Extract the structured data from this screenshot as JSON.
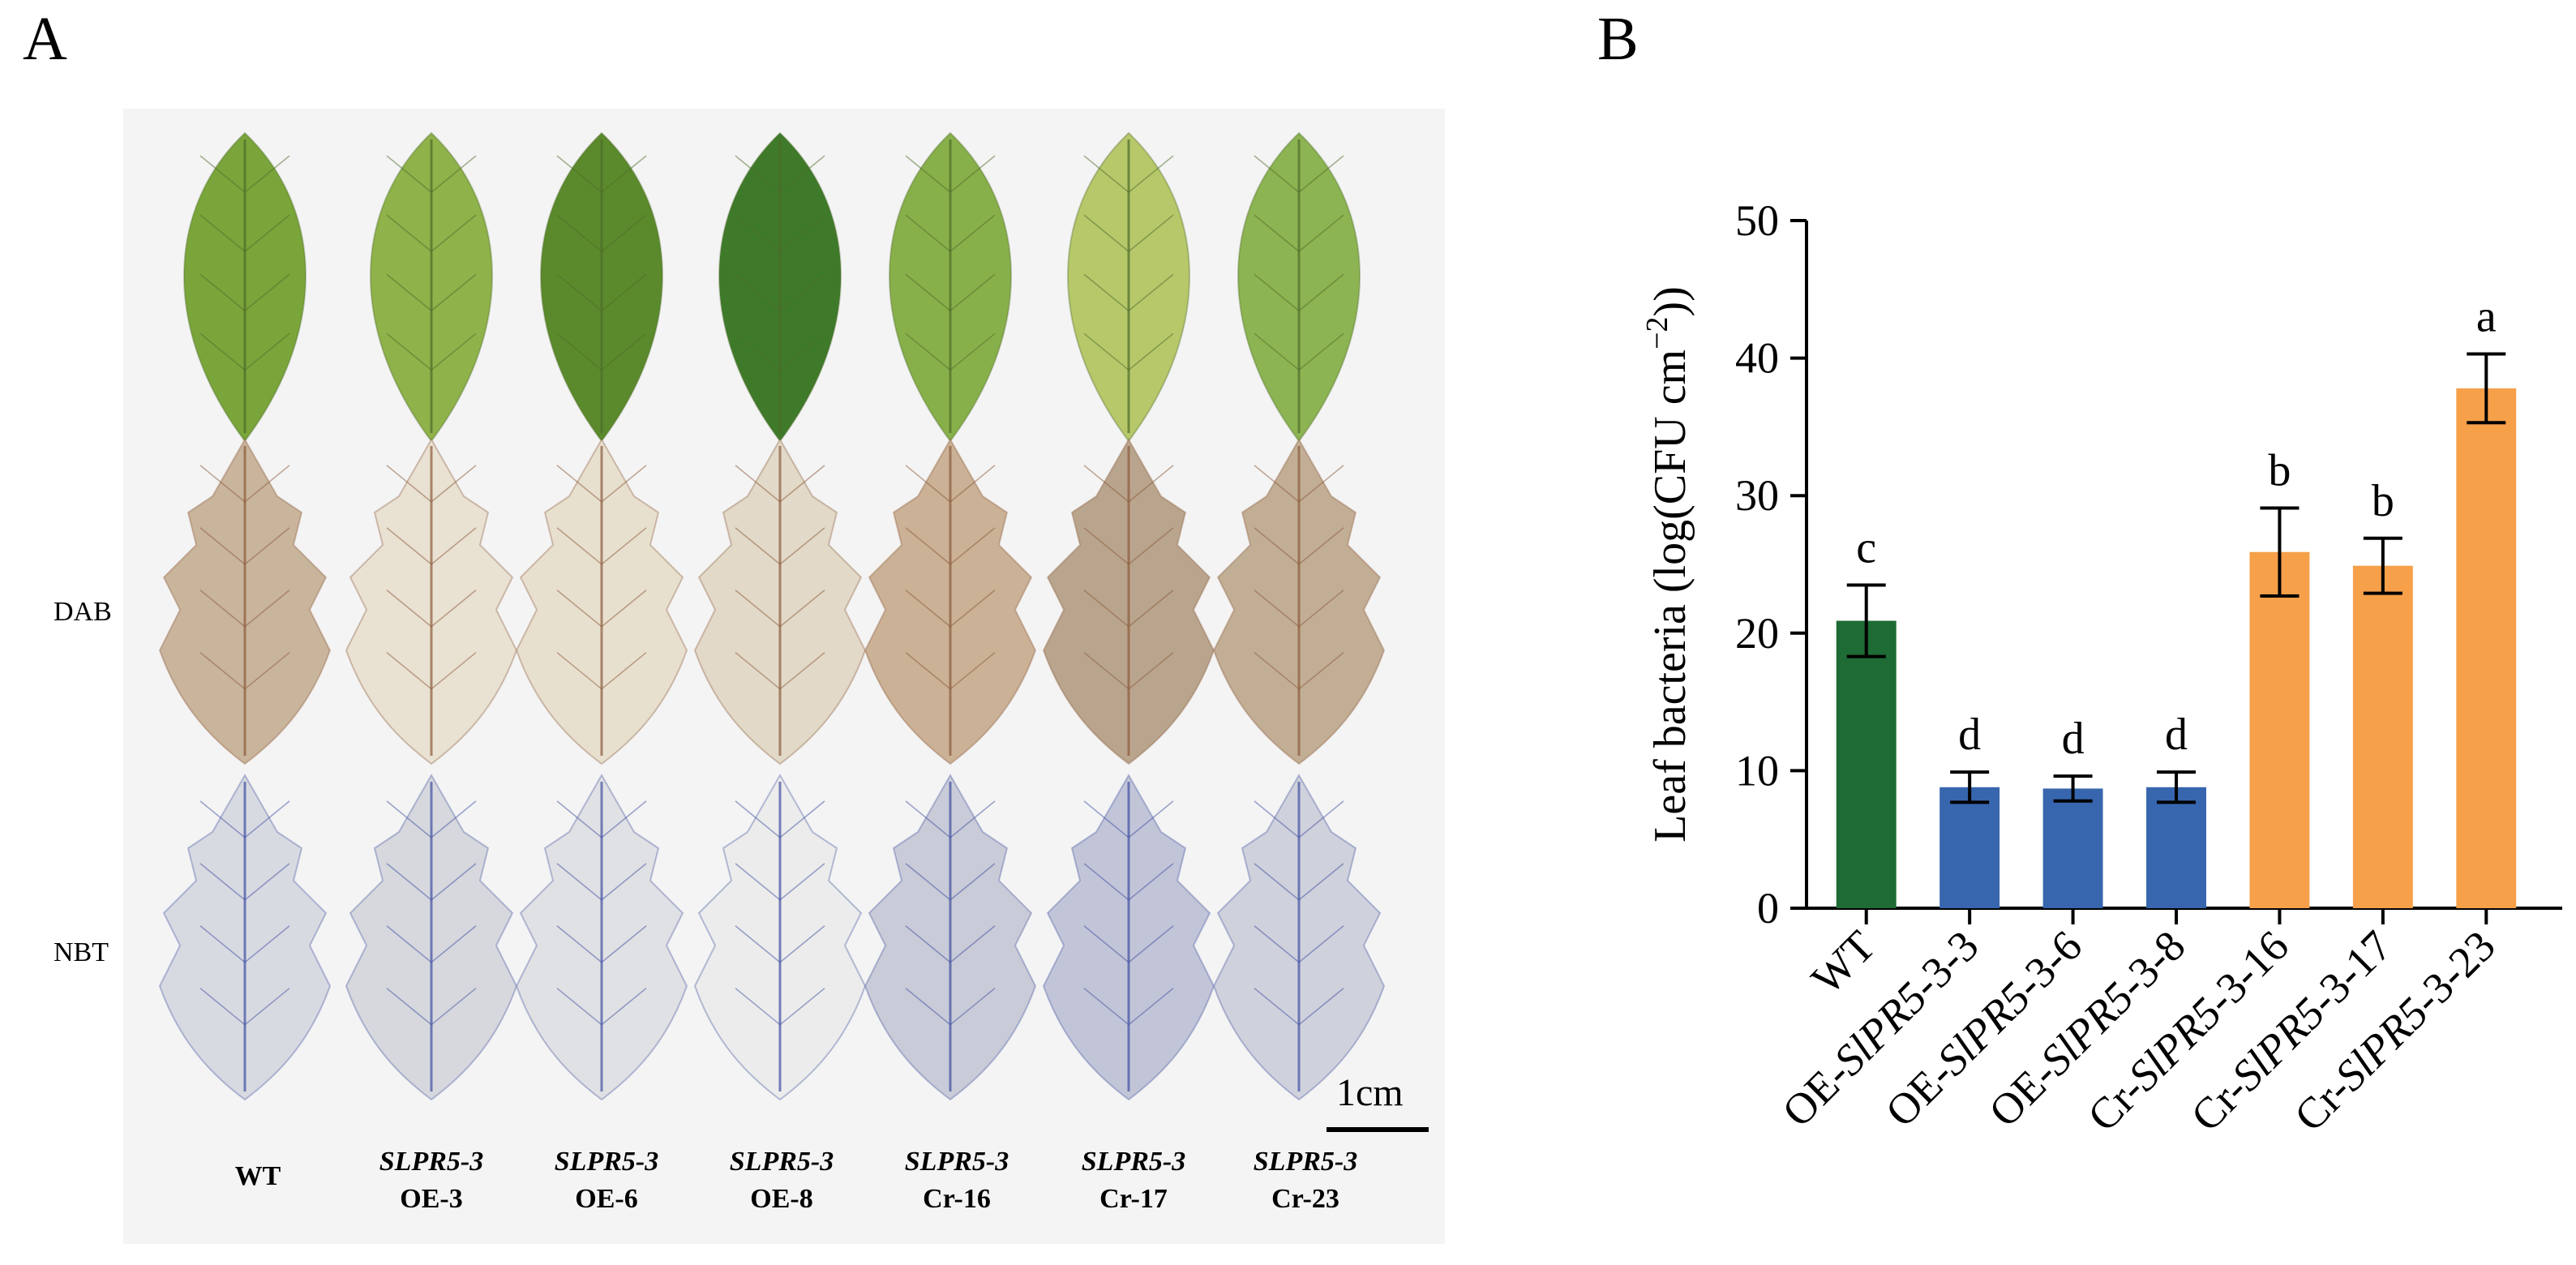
{
  "panel_a": {
    "letter": "A",
    "row_labels": [
      "DAB",
      "NBT"
    ],
    "scale_label": "1cm",
    "lines": [
      {
        "gene": "",
        "line": "WT"
      },
      {
        "gene": "SLPR5-3",
        "line": "OE-3"
      },
      {
        "gene": "SLPR5-3",
        "line": "OE-6"
      },
      {
        "gene": "SLPR5-3",
        "line": "OE-8"
      },
      {
        "gene": "SLPR5-3",
        "line": "Cr-16"
      },
      {
        "gene": "SLPR5-3",
        "line": "Cr-17"
      },
      {
        "gene": "SLPR5-3",
        "line": "Cr-23"
      }
    ],
    "colors": {
      "untreated_leaf": [
        "#7aa53a",
        "#8fb24a",
        "#5b8a2c",
        "#3f7a2a",
        "#88b04a",
        "#b6c86a",
        "#8cb452"
      ],
      "dab_leaf": [
        "#c9b49c",
        "#e9e1d2",
        "#e8e0cf",
        "#e2d9c8",
        "#cbb196",
        "#b9a58d",
        "#c2ae95"
      ],
      "nbt_leaf": [
        "#d8dae2",
        "#d6d8de",
        "#e0e1e4",
        "#ececec",
        "#c9cbd8",
        "#c2c5d8",
        "#cfd1dc"
      ],
      "nbt_vein": "#3f4f9f",
      "dab_vein": "#8a5a3a"
    }
  },
  "panel_b": {
    "letter": "B"
  },
  "chart_data": {
    "type": "bar",
    "title": "",
    "xlabel": "",
    "ylabel": "Leaf bacteria (log(CFU cm−2))",
    "ylabel_parts": {
      "main": "Leaf bacteria (log(CFU cm",
      "sup": "−2",
      "end": "))"
    },
    "ylim": [
      0,
      50
    ],
    "yticks": [
      0,
      10,
      20,
      30,
      40,
      50
    ],
    "categories": [
      {
        "prefix": "",
        "italic": "",
        "suffix": "WT"
      },
      {
        "prefix": "OE-",
        "italic": "SlPR5",
        "suffix": "-3-3"
      },
      {
        "prefix": "OE-",
        "italic": "SlPR5",
        "suffix": "-3-6"
      },
      {
        "prefix": "OE-",
        "italic": "SlPR5",
        "suffix": "-3-8"
      },
      {
        "prefix": "Cr-",
        "italic": "SlPR5",
        "suffix": "-3-16"
      },
      {
        "prefix": "Cr-",
        "italic": "SlPR5",
        "suffix": "-3-17"
      },
      {
        "prefix": "Cr-",
        "italic": "SlPR5",
        "suffix": "-3-23"
      }
    ],
    "category_names": [
      "WT",
      "OE-SlPR5-3-3",
      "OE-SlPR5-3-6",
      "OE-SlPR5-3-8",
      "Cr-SlPR5-3-16",
      "Cr-SlPR5-3-17",
      "Cr-SlPR5-3-23"
    ],
    "values": [
      20.9,
      8.8,
      8.7,
      8.8,
      25.9,
      24.9,
      37.8
    ],
    "errors": [
      2.6,
      1.1,
      0.9,
      1.1,
      3.2,
      2.0,
      2.5
    ],
    "significance": [
      "c",
      "d",
      "d",
      "d",
      "b",
      "b",
      "a"
    ],
    "bar_colors": [
      "#1e6b35",
      "#3766ae",
      "#3766ae",
      "#3766ae",
      "#f6a04a",
      "#f6a04a",
      "#f6a04a"
    ],
    "grid": false,
    "legend": "none"
  }
}
